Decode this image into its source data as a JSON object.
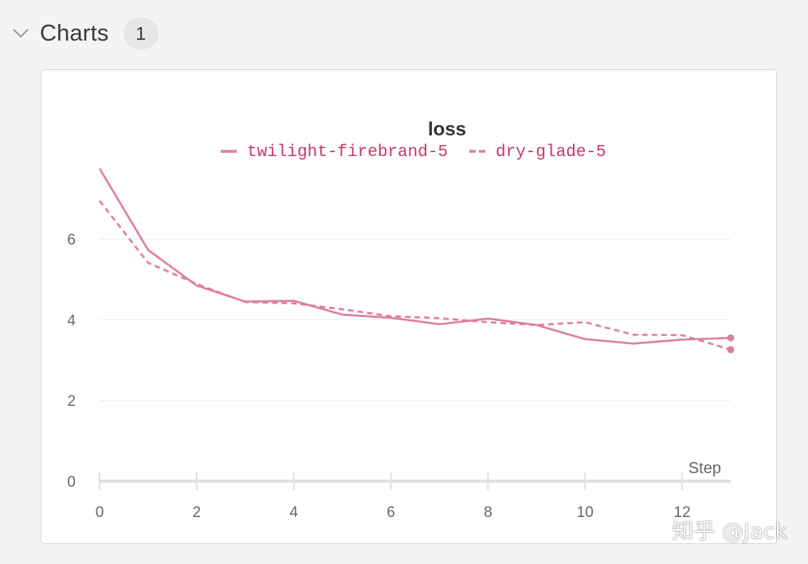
{
  "section": {
    "title": "Charts",
    "count": "1"
  },
  "colors": {
    "series": "#de7fa0",
    "legend_text": "#c9356a",
    "grid": "#ebebeb",
    "axis": "#e0e0e0",
    "tick_text": "#666666",
    "title_text": "#333333"
  },
  "icons": {
    "collapse": "chevron-down-icon"
  },
  "watermark": "知乎 @Jack",
  "chart_data": {
    "type": "line",
    "title": "loss",
    "xlabel": "Step",
    "ylabel": "",
    "xlim": [
      0,
      13
    ],
    "ylim": [
      0,
      7.8
    ],
    "xticks": [
      0,
      2,
      4,
      6,
      8,
      10,
      12
    ],
    "yticks": [
      0,
      2,
      4,
      6
    ],
    "grid": true,
    "legend_position": "top-center",
    "series": [
      {
        "name": "twilight-firebrand-5",
        "style": "solid",
        "x": [
          0,
          1,
          2,
          3,
          4,
          5,
          6,
          7,
          8,
          9,
          10,
          11,
          12,
          13
        ],
        "values": [
          7.75,
          5.73,
          4.85,
          4.45,
          4.47,
          4.13,
          4.05,
          3.89,
          4.03,
          3.87,
          3.52,
          3.41,
          3.51,
          3.55
        ]
      },
      {
        "name": "dry-glade-5",
        "style": "dashed",
        "x": [
          0,
          1,
          2,
          3,
          4,
          5,
          6,
          7,
          8,
          9,
          10,
          11,
          12,
          13
        ],
        "values": [
          6.95,
          5.41,
          4.89,
          4.44,
          4.41,
          4.26,
          4.09,
          4.04,
          3.94,
          3.87,
          3.94,
          3.63,
          3.62,
          3.26
        ]
      }
    ]
  }
}
